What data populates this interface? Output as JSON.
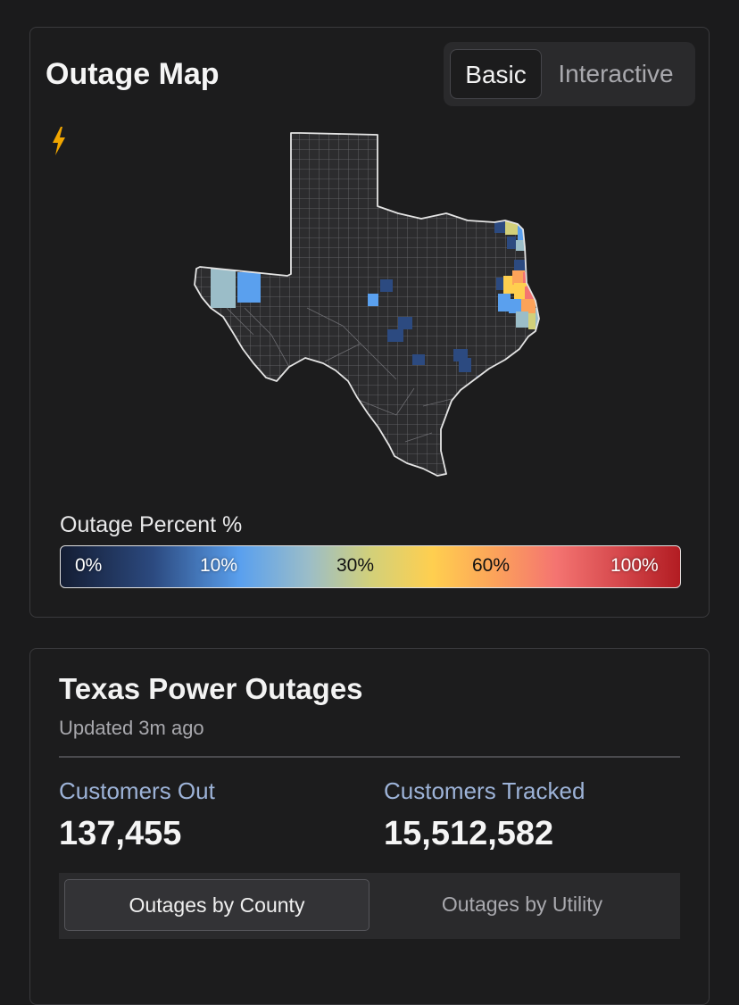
{
  "map_card": {
    "title": "Outage Map",
    "view_toggle": {
      "basic_label": "Basic",
      "interactive_label": "Interactive",
      "selected": "Basic"
    },
    "legend": {
      "label": "Outage Percent %",
      "ticks": [
        "0%",
        "10%",
        "30%",
        "60%",
        "100%"
      ]
    },
    "icon": "lightning-bolt-icon",
    "colors": {
      "no_outage": "#2c2c2e",
      "low": "#2c4a80",
      "medium_low": "#5aa0ee",
      "medium": "#9bbdc8",
      "yellow": "#ffcf4f",
      "orange": "#fca35a",
      "red": "#f47471",
      "bolt": "#f0a500"
    }
  },
  "stats_card": {
    "title": "Texas Power Outages",
    "updated": "Updated 3m ago",
    "customers_out_label": "Customers Out",
    "customers_out_value": "137,455",
    "customers_tracked_label": "Customers Tracked",
    "customers_tracked_value": "15,512,582",
    "tabs": {
      "county_label": "Outages by County",
      "utility_label": "Outages by Utility",
      "selected": "Outages by County"
    }
  }
}
